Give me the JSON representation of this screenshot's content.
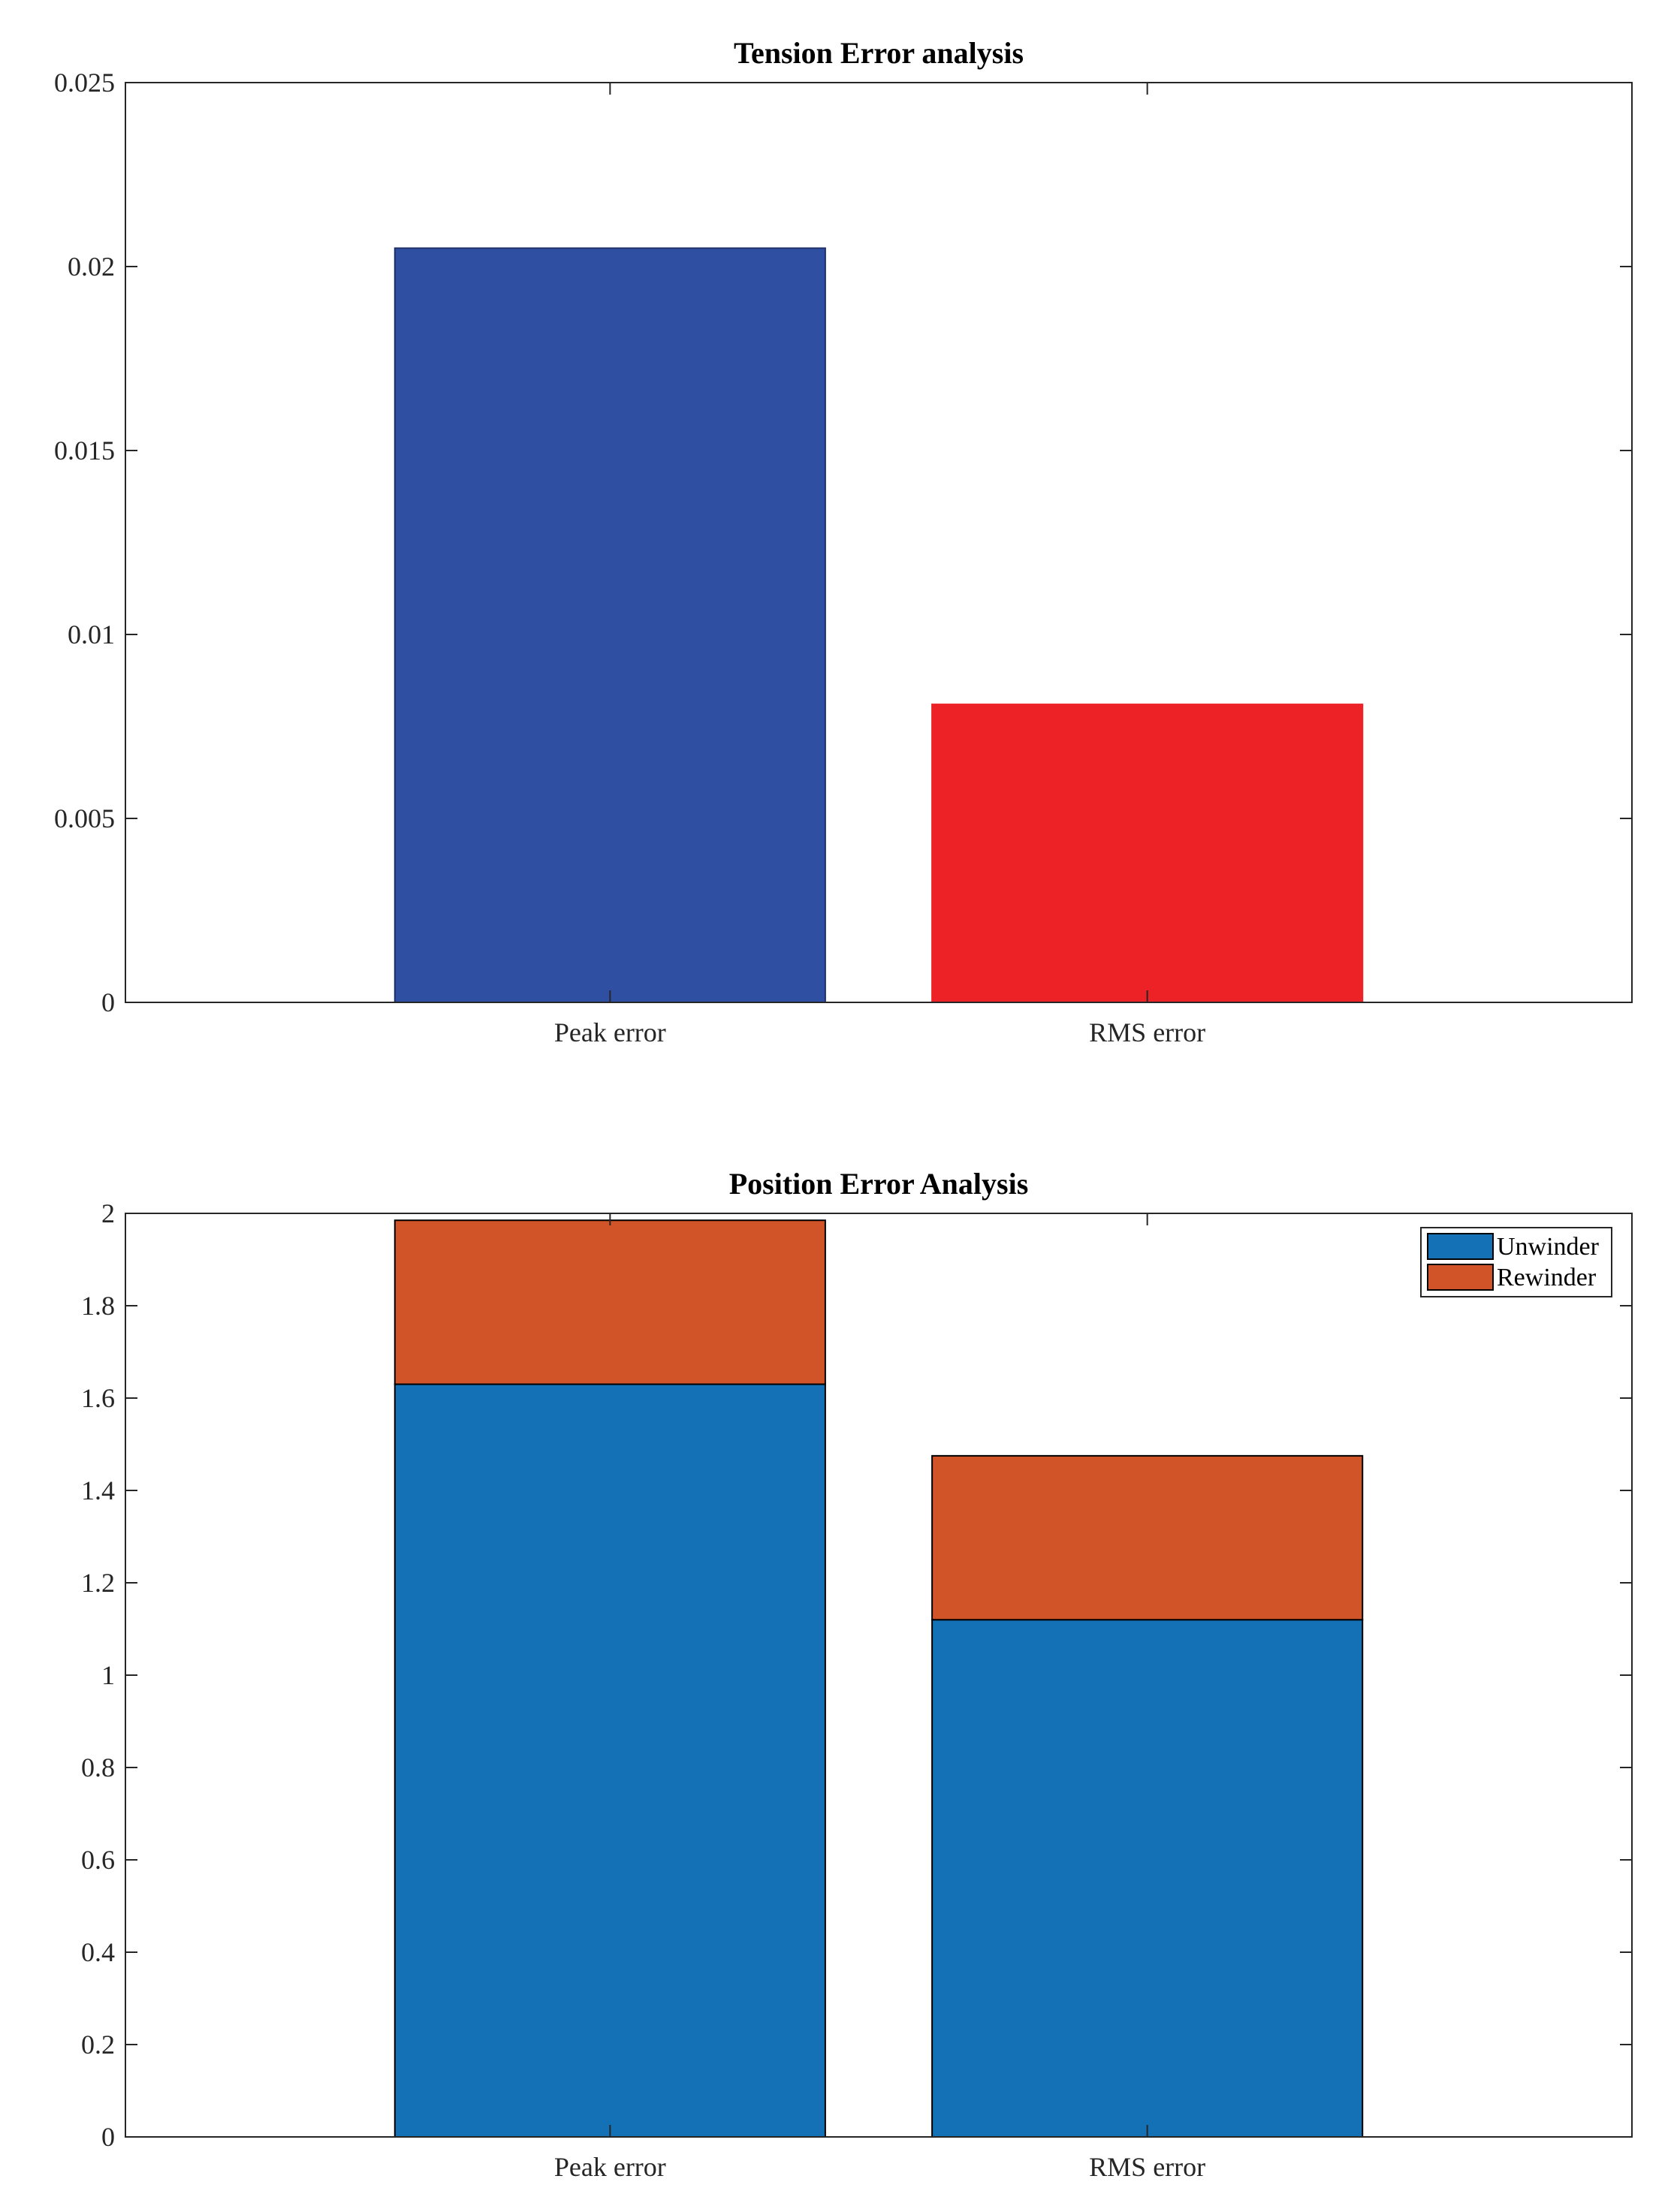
{
  "chart_data": [
    {
      "type": "bar",
      "title": "Tension Error analysis",
      "categories": [
        "Peak error",
        "RMS error"
      ],
      "values": [
        0.0205,
        0.0081
      ],
      "bar_colors": [
        "#2F4FA2",
        "#EC2226"
      ],
      "xlabel": "",
      "ylabel": "",
      "ylim": [
        0,
        0.025
      ],
      "yticks": [
        0,
        0.005,
        0.01,
        0.015,
        0.02,
        0.025
      ],
      "ytick_labels": [
        "0",
        "0.005",
        "0.01",
        "0.015",
        "0.02",
        "0.025"
      ],
      "grid": false,
      "legend": null
    },
    {
      "type": "bar",
      "stacked": true,
      "title": "Position Error Analysis",
      "categories": [
        "Peak error",
        "RMS error"
      ],
      "series": [
        {
          "name": "Unwinder",
          "values": [
            1.63,
            1.12
          ],
          "color": "#1471B5"
        },
        {
          "name": "Rewinder",
          "values": [
            0.355,
            0.355
          ],
          "color": "#D05427"
        }
      ],
      "xlabel": "",
      "ylabel": "",
      "ylim": [
        0,
        2
      ],
      "yticks": [
        0,
        0.2,
        0.4,
        0.6,
        0.8,
        1,
        1.2,
        1.4,
        1.6,
        1.8,
        2
      ],
      "ytick_labels": [
        "0",
        "0.2",
        "0.4",
        "0.6",
        "0.8",
        "1",
        "1.2",
        "1.4",
        "1.6",
        "1.8",
        "2"
      ],
      "grid": false,
      "legend": {
        "position": "top-right",
        "entries": [
          "Unwinder",
          "Rewinder"
        ]
      }
    }
  ]
}
